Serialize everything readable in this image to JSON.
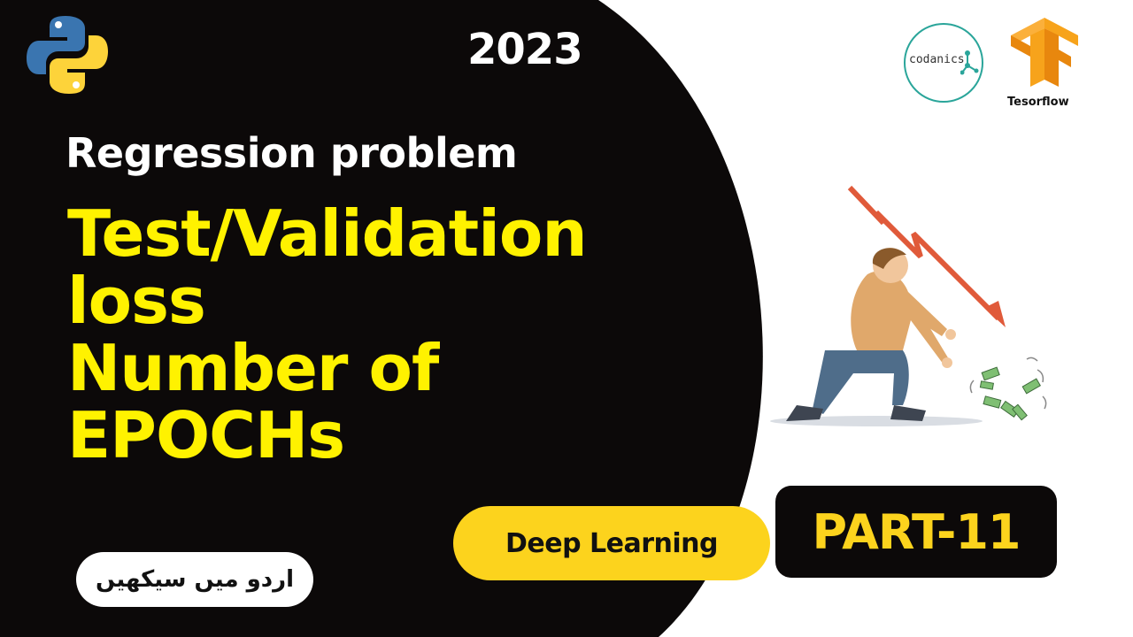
{
  "year": "2023",
  "subtitle": "Regression problem",
  "headline_lines": [
    "Test/Validation",
    "loss",
    "Number of",
    "EPOCHs"
  ],
  "badges": {
    "deep_learning": "Deep Learning",
    "part": "PART-11",
    "urdu": "اردو میں سیکھیں"
  },
  "logos": {
    "codanics": "codanics",
    "tensorflow": "Tesorflow"
  },
  "icons": [
    "python-logo-icon",
    "codanics-logo-icon",
    "tensorflow-logo-icon",
    "falling-chart-arrow-icon",
    "money-bills-icon"
  ],
  "colors": {
    "dark_background": "#0c0909",
    "headline_yellow": "#fff200",
    "pill_yellow": "#fcd31d",
    "arrow_red": "#e05a3a"
  }
}
